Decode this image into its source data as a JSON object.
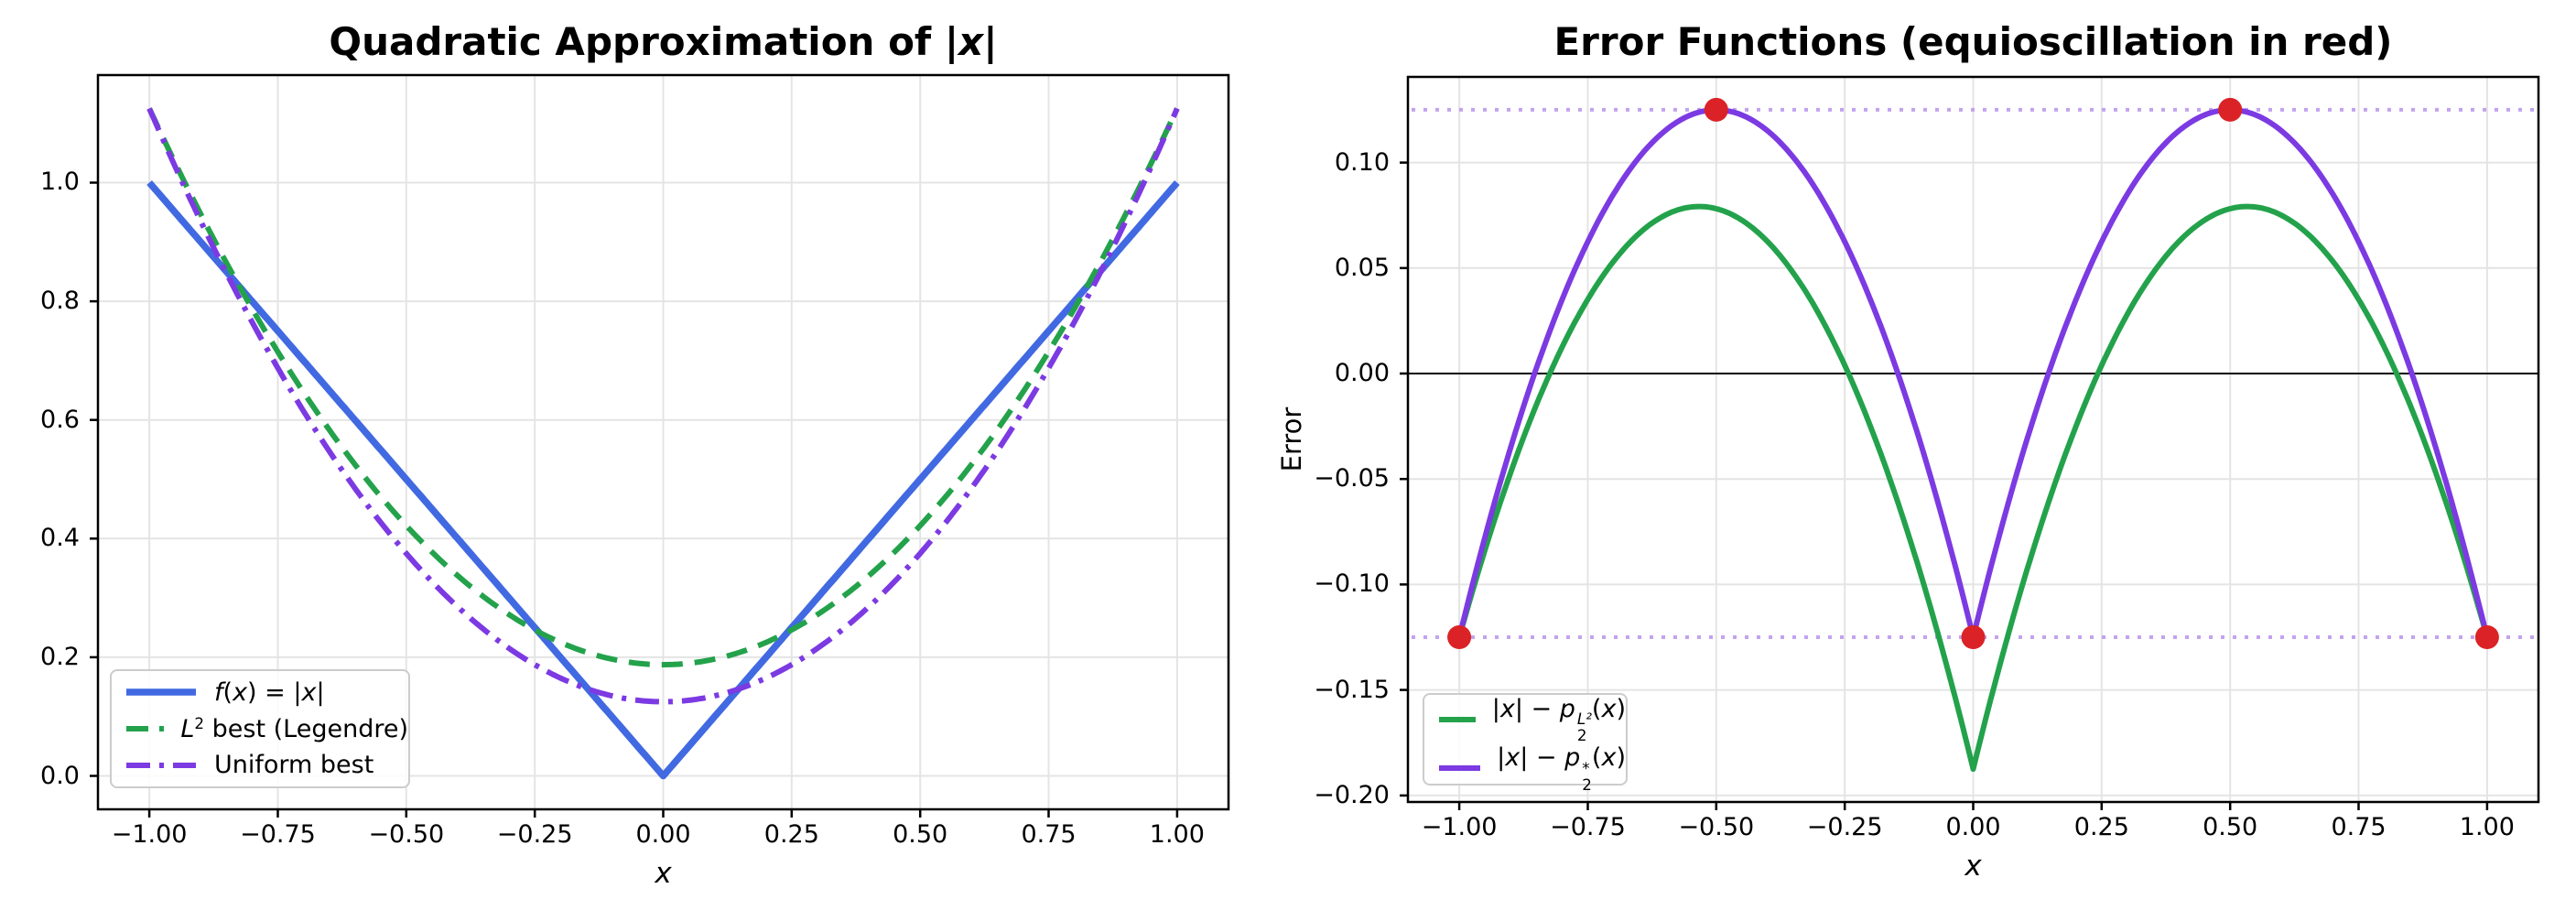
{
  "figure": {
    "background": "#ffffff"
  },
  "colors": {
    "blue": "#4169E1",
    "green": "#23A24B",
    "purple": "#7C3AE2",
    "red": "#DB2327",
    "equioscillation_line": "#C2A3EF",
    "grid": "#E4E4E4",
    "axis": "#000000",
    "zero_line": "#000000",
    "legend_border": "#CCCCCC"
  },
  "chart_data": [
    {
      "type": "line",
      "title": "Quadratic Approximation of |x|",
      "title_rich": [
        {
          "t": "Quadratic Approximation of |"
        },
        {
          "t": "x",
          "i": 1
        },
        {
          "t": "|"
        }
      ],
      "xlabel": "x",
      "ylabel": "",
      "xlim": [
        -1.1,
        1.1
      ],
      "ylim": [
        -0.0563,
        1.1813
      ],
      "x_range": [
        -1,
        1
      ],
      "grid": true,
      "legend_position": "lower left",
      "xtick_values": [
        -1,
        -0.75,
        -0.5,
        -0.25,
        0,
        0.25,
        0.5,
        0.75,
        1
      ],
      "xtick_labels": [
        "−1.00",
        "−0.75",
        "−0.50",
        "−0.25",
        "0.00",
        "0.25",
        "0.50",
        "0.75",
        "1.00"
      ],
      "ytick_values": [
        0,
        0.2,
        0.4,
        0.6,
        0.8,
        1.0
      ],
      "ytick_labels": [
        "0.0",
        "0.2",
        "0.4",
        "0.6",
        "0.8",
        "1.0"
      ],
      "series": [
        {
          "name": "f(x) = |x|",
          "rich": [
            {
              "t": "f",
              "i": 1
            },
            {
              "t": "("
            },
            {
              "t": "x",
              "i": 1
            },
            {
              "t": ") = |"
            },
            {
              "t": "x",
              "i": 1
            },
            {
              "t": "|"
            }
          ],
          "color_key": "blue",
          "style": "solid",
          "width": 7.5,
          "fn": "abs",
          "key_points": [
            [
              -1,
              1
            ],
            [
              0,
              0
            ],
            [
              1,
              1
            ]
          ]
        },
        {
          "name": "L² best (Legendre)",
          "rich": [
            {
              "t": "L",
              "i": 1,
              "sup": "2"
            },
            {
              "t": " best (Legendre)"
            }
          ],
          "color_key": "green",
          "style": "dashed",
          "width": 6,
          "fn": "poly",
          "poly": [
            0.1875,
            0,
            0.9375
          ],
          "key_points": [
            [
              -1,
              1.125
            ],
            [
              0,
              0.1875
            ],
            [
              1,
              1.125
            ]
          ]
        },
        {
          "name": "Uniform best",
          "rich": [
            {
              "t": "Uniform best"
            }
          ],
          "color_key": "purple",
          "style": "dashdot",
          "width": 6,
          "fn": "poly",
          "poly": [
            0.125,
            0,
            1
          ],
          "key_points": [
            [
              -1,
              1.125
            ],
            [
              0,
              0.125
            ],
            [
              1,
              1.125
            ]
          ]
        }
      ]
    },
    {
      "type": "line",
      "title": "Error Functions (equioscillation in red)",
      "title_rich": [
        {
          "t": "Error Functions (equioscillation in red)"
        }
      ],
      "xlabel": "x",
      "ylabel": "Error",
      "xlim": [
        -1.1,
        1.1
      ],
      "ylim": [
        -0.2031,
        0.1406
      ],
      "x_range": [
        -1,
        1
      ],
      "grid": true,
      "zero_line": true,
      "legend_position": "lower left",
      "xtick_values": [
        -1,
        -0.75,
        -0.5,
        -0.25,
        0,
        0.25,
        0.5,
        0.75,
        1
      ],
      "xtick_labels": [
        "−1.00",
        "−0.75",
        "−0.50",
        "−0.25",
        "0.00",
        "0.25",
        "0.50",
        "0.75",
        "1.00"
      ],
      "ytick_values": [
        0.1,
        0.05,
        0,
        -0.05,
        -0.1,
        -0.15,
        -0.2
      ],
      "ytick_labels": [
        "0.10",
        "0.05",
        "0.00",
        "−0.05",
        "−0.10",
        "−0.15",
        "−0.20"
      ],
      "series": [
        {
          "name": "|x| − p₂^(L²)(x)",
          "rich": [
            {
              "t": "|"
            },
            {
              "t": "x",
              "i": 1
            },
            {
              "t": "| − "
            },
            {
              "t": "p",
              "i": 1,
              "sup": "L²",
              "sub": "2",
              "supItalic": true
            },
            {
              "t": "("
            },
            {
              "t": "x",
              "i": 1
            },
            {
              "t": ")"
            }
          ],
          "color_key": "green",
          "style": "solid",
          "width": 6,
          "fn": "abs_minus_poly",
          "poly": [
            0.1875,
            0,
            0.9375
          ],
          "key_points": [
            [
              -1,
              -0.125
            ],
            [
              -0.533,
              0.079
            ],
            [
              0,
              -0.1875
            ],
            [
              0.533,
              0.079
            ],
            [
              1,
              -0.125
            ]
          ]
        },
        {
          "name": "|x| − p₂^*(x)",
          "rich": [
            {
              "t": "|"
            },
            {
              "t": "x",
              "i": 1
            },
            {
              "t": "| − "
            },
            {
              "t": "p",
              "i": 1,
              "sup": "*",
              "sub": "2"
            },
            {
              "t": "("
            },
            {
              "t": "x",
              "i": 1
            },
            {
              "t": ")"
            }
          ],
          "color_key": "purple",
          "style": "solid",
          "width": 6,
          "fn": "abs_minus_poly",
          "poly": [
            0.125,
            0,
            1
          ],
          "key_points": [
            [
              -1,
              -0.125
            ],
            [
              -0.5,
              0.125
            ],
            [
              0,
              -0.125
            ],
            [
              0.5,
              0.125
            ],
            [
              1,
              -0.125
            ]
          ]
        }
      ],
      "equioscillation_level": 0.125,
      "equioscillation_lines": [
        0.125,
        -0.125
      ],
      "equioscillation_points": [
        [
          -1,
          -0.125
        ],
        [
          -0.5,
          0.125
        ],
        [
          0,
          -0.125
        ],
        [
          0.5,
          0.125
        ],
        [
          1,
          -0.125
        ]
      ],
      "marker_radius_px": 13
    }
  ]
}
